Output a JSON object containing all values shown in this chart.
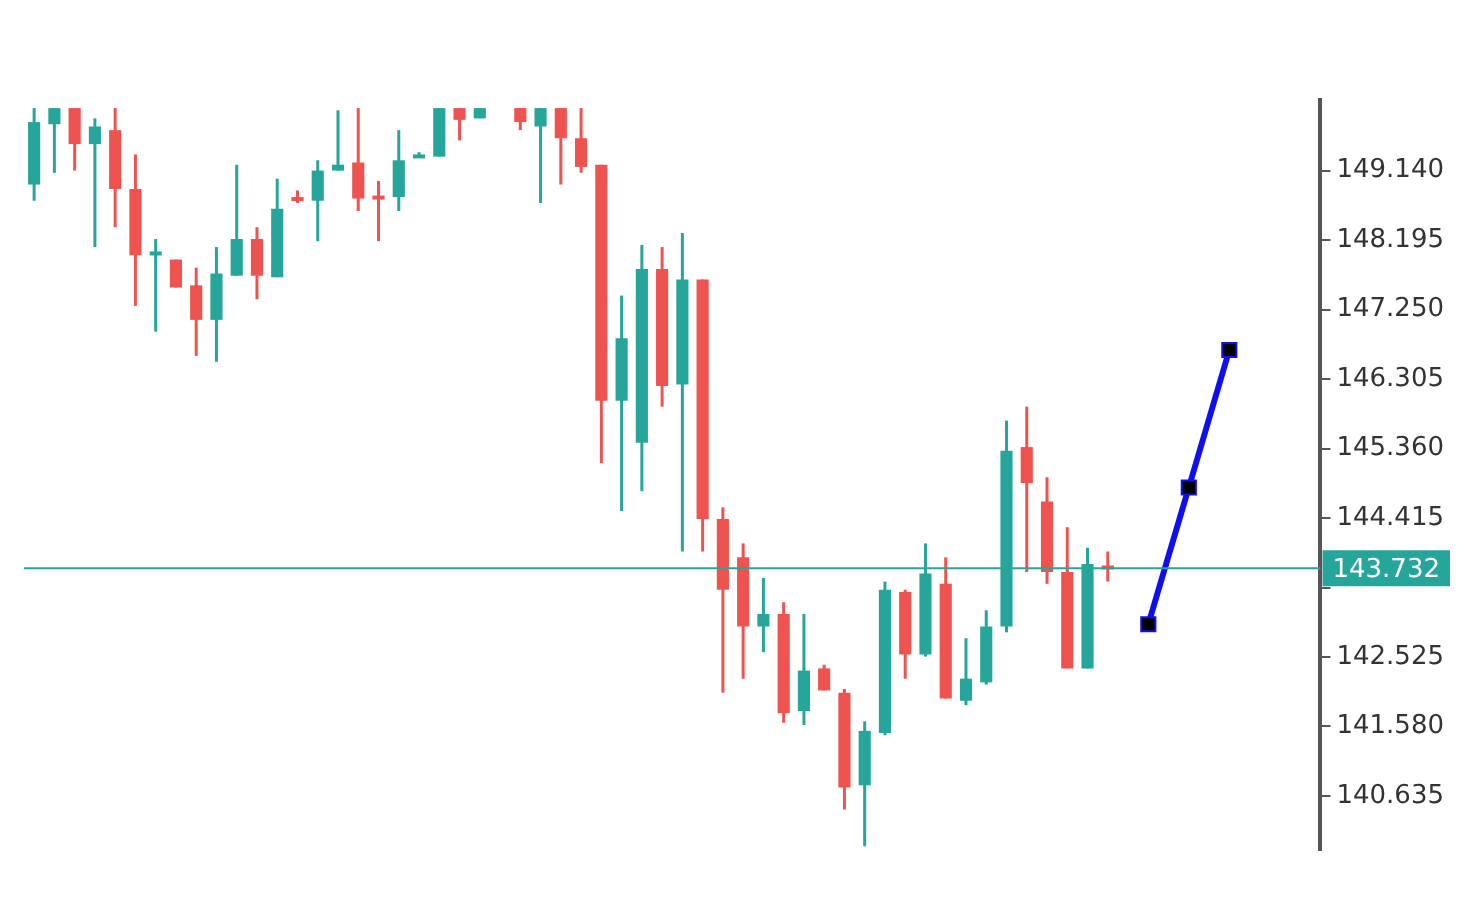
{
  "chart_data": {
    "type": "candlestick",
    "categories": [
      null,
      null,
      null,
      null,
      null,
      null,
      null,
      null,
      null,
      null,
      null,
      null,
      null,
      null,
      null,
      null,
      null,
      null,
      null,
      null,
      null,
      null,
      null,
      null,
      null,
      null,
      null,
      null,
      null,
      null,
      null,
      null,
      null,
      null,
      null,
      null,
      null,
      null,
      null,
      null,
      null,
      null,
      null,
      null,
      null,
      null,
      null,
      null,
      null,
      null,
      null,
      null,
      null,
      null,
      null,
      null,
      null,
      null,
      null,
      null,
      null,
      null,
      null,
      null
    ],
    "ohlc": [
      [
        148.95,
        149.99,
        148.73,
        149.8
      ],
      [
        149.77,
        149.99,
        149.11,
        149.99
      ],
      [
        149.99,
        149.99,
        149.14,
        149.5
      ],
      [
        149.5,
        149.85,
        148.1,
        149.74
      ],
      [
        149.69,
        149.99,
        148.37,
        148.89
      ],
      [
        148.89,
        149.36,
        147.3,
        147.99
      ],
      [
        148.02,
        148.21,
        146.95,
        148.04
      ],
      [
        147.93,
        147.93,
        147.55,
        147.55
      ],
      [
        147.58,
        147.82,
        146.62,
        147.11
      ],
      [
        147.11,
        148.1,
        146.54,
        147.74
      ],
      [
        147.71,
        149.22,
        147.71,
        148.21
      ],
      [
        148.21,
        148.37,
        147.39,
        147.71
      ],
      [
        147.69,
        149.03,
        147.69,
        148.62
      ],
      [
        148.78,
        148.87,
        148.7,
        148.74
      ],
      [
        148.73,
        149.28,
        148.18,
        149.14
      ],
      [
        149.14,
        149.96,
        149.14,
        149.22
      ],
      [
        149.25,
        149.99,
        148.59,
        148.76
      ],
      [
        148.8,
        149.0,
        148.18,
        148.78
      ],
      [
        148.78,
        149.69,
        148.59,
        149.28
      ],
      [
        149.34,
        149.39,
        149.33,
        149.36
      ],
      [
        149.33,
        149.99,
        149.33,
        149.99
      ],
      [
        149.99,
        149.99,
        149.55,
        149.83
      ],
      [
        149.85,
        149.99,
        149.85,
        149.99
      ],
      null,
      [
        149.99,
        149.99,
        149.69,
        149.8
      ],
      [
        149.74,
        149.99,
        148.7,
        149.99
      ],
      [
        149.99,
        149.99,
        148.95,
        149.58
      ],
      [
        149.58,
        149.99,
        149.11,
        149.19
      ],
      [
        149.22,
        149.22,
        145.16,
        146.01
      ],
      [
        146.01,
        147.44,
        144.51,
        146.86
      ],
      [
        145.44,
        148.13,
        144.78,
        147.8
      ],
      [
        147.8,
        148.1,
        145.93,
        146.21
      ],
      [
        146.23,
        148.29,
        143.96,
        147.66
      ],
      [
        147.66,
        147.66,
        143.96,
        144.4
      ],
      [
        144.4,
        144.56,
        142.04,
        143.44
      ],
      [
        143.88,
        144.07,
        142.23,
        142.94
      ],
      [
        142.94,
        143.6,
        142.59,
        143.11
      ],
      [
        143.11,
        143.27,
        141.63,
        141.76
      ],
      [
        141.79,
        143.11,
        141.6,
        142.34
      ],
      [
        142.37,
        142.42,
        142.07,
        142.07
      ],
      [
        142.04,
        142.09,
        140.45,
        140.75
      ],
      [
        140.78,
        141.65,
        139.95,
        141.52
      ],
      [
        141.49,
        143.55,
        141.46,
        143.44
      ],
      [
        143.41,
        143.44,
        142.23,
        142.56
      ],
      [
        142.56,
        144.07,
        142.53,
        143.66
      ],
      [
        143.52,
        143.88,
        141.96,
        141.96
      ],
      [
        141.93,
        142.78,
        141.87,
        142.23
      ],
      [
        142.18,
        143.16,
        142.15,
        142.94
      ],
      [
        142.94,
        145.74,
        142.86,
        145.33
      ],
      [
        145.38,
        145.93,
        143.68,
        144.89
      ],
      [
        144.64,
        144.97,
        143.52,
        143.68
      ],
      [
        143.68,
        144.29,
        142.37,
        142.37
      ],
      [
        142.37,
        144.01,
        142.37,
        143.79
      ],
      [
        143.77,
        143.96,
        143.55,
        143.74
      ],
      null,
      null,
      null,
      null,
      null,
      null,
      null,
      null,
      null,
      null
    ],
    "colors": [
      "#26a69a",
      "#26a69a",
      "#ef5350",
      "#26a69a",
      "#ef5350",
      "#ef5350",
      "#26a69a",
      "#ef5350",
      "#ef5350",
      "#26a69a",
      "#26a69a",
      "#ef5350",
      "#26a69a",
      "#ef5350",
      "#26a69a",
      "#26a69a",
      "#ef5350",
      "#ef5350",
      "#26a69a",
      "#26a69a",
      "#26a69a",
      "#ef5350",
      "#26a69a",
      null,
      "#ef5350",
      "#26a69a",
      "#ef5350",
      "#ef5350",
      "#ef5350",
      "#26a69a",
      "#26a69a",
      "#ef5350",
      "#26a69a",
      "#ef5350",
      "#ef5350",
      "#ef5350",
      "#26a69a",
      "#ef5350",
      "#26a69a",
      "#ef5350",
      "#ef5350",
      "#26a69a",
      "#26a69a",
      "#ef5350",
      "#26a69a",
      "#ef5350",
      "#26a69a",
      "#26a69a",
      "#26a69a",
      "#ef5350",
      "#ef5350",
      "#ef5350",
      "#26a69a",
      "#ef5350",
      null,
      null,
      null,
      null,
      null,
      null,
      null,
      null,
      null,
      null
    ],
    "series": [
      {
        "type": "line",
        "color": "#1010ee",
        "values": [
          null,
          null,
          null,
          null,
          null,
          null,
          null,
          null,
          null,
          null,
          null,
          null,
          null,
          null,
          null,
          null,
          null,
          null,
          null,
          null,
          null,
          null,
          null,
          null,
          null,
          null,
          null,
          null,
          null,
          null,
          null,
          null,
          null,
          null,
          null,
          null,
          null,
          null,
          null,
          null,
          null,
          null,
          null,
          null,
          null,
          null,
          null,
          null,
          null,
          null,
          null,
          null,
          null,
          null,
          null,
          142.97,
          null,
          144.83,
          null,
          146.7,
          null,
          null,
          null,
          null
        ],
        "marker": "square"
      }
    ],
    "ylim": [
      139.9,
      150.1
    ],
    "yticks": [
      {
        "value": 140.635,
        "label": "140.635"
      },
      {
        "value": 141.58,
        "label": "141.580"
      },
      {
        "value": 142.525,
        "label": "142.525"
      },
      {
        "value": 143.47,
        "label": null
      },
      {
        "value": 144.415,
        "label": "144.415"
      },
      {
        "value": 145.36,
        "label": "145.360"
      },
      {
        "value": 146.305,
        "label": "146.305"
      },
      {
        "value": 147.25,
        "label": "147.250"
      },
      {
        "value": 148.195,
        "label": "148.195"
      },
      {
        "value": 149.14,
        "label": "149.140"
      }
    ],
    "ref_lines": [
      {
        "axis": "y",
        "value": 143.732,
        "label": "143.732",
        "color": "#26a69a"
      }
    ],
    "tick_labels": "y",
    "grid": false,
    "legend": false
  }
}
